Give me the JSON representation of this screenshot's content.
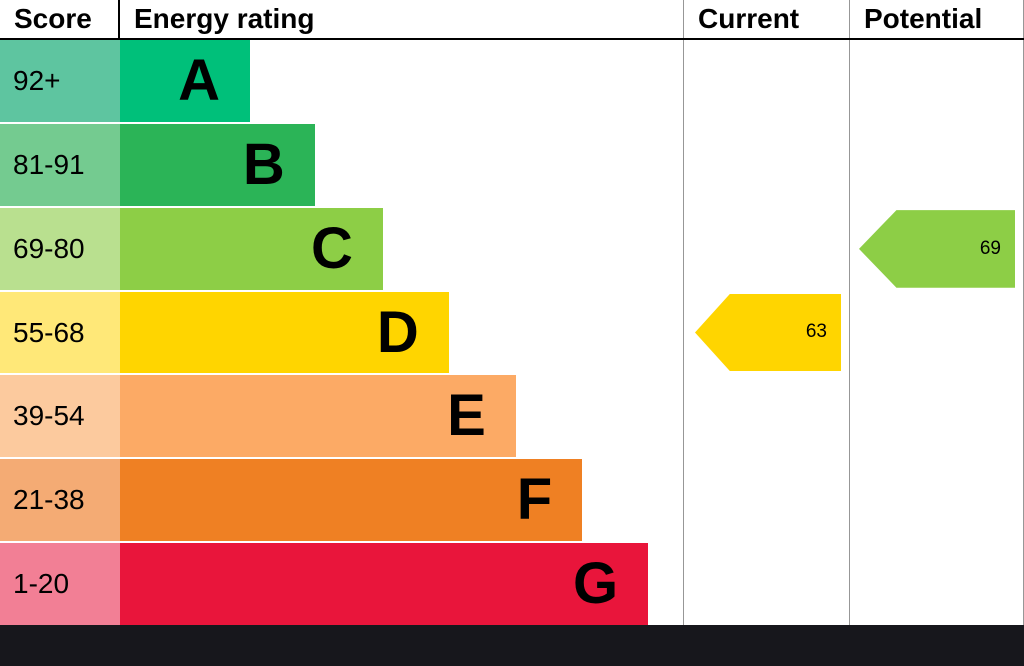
{
  "header": {
    "score": "Score",
    "energy_rating": "Energy rating",
    "current": "Current",
    "potential": "Potential"
  },
  "bands": [
    {
      "score": "92+",
      "letter": "A",
      "bar_color": "#00c07a",
      "score_color": "#5ec5a0",
      "width_pct": 23.1
    },
    {
      "score": "81-91",
      "letter": "B",
      "bar_color": "#2bb457",
      "score_color": "#74cb90",
      "width_pct": 34.6
    },
    {
      "score": "69-80",
      "letter": "C",
      "bar_color": "#8dce46",
      "score_color": "#b9e08f",
      "width_pct": 46.7
    },
    {
      "score": "55-68",
      "letter": "D",
      "bar_color": "#ffd500",
      "score_color": "#ffe878",
      "width_pct": 58.4
    },
    {
      "score": "39-54",
      "letter": "E",
      "bar_color": "#fcaa65",
      "score_color": "#fcca9e",
      "width_pct": 70.3
    },
    {
      "score": "21-38",
      "letter": "F",
      "bar_color": "#ef8023",
      "score_color": "#f4ab74",
      "width_pct": 82.1
    },
    {
      "score": "1-20",
      "letter": "G",
      "bar_color": "#e9153b",
      "score_color": "#f27f95",
      "width_pct": 93.8
    }
  ],
  "current": {
    "value": "63",
    "band_row": 3,
    "band": "D",
    "color": "#ffd500"
  },
  "potential": {
    "value": "69",
    "band_row": 2,
    "band": "C",
    "color": "#8dce46"
  },
  "chart_data": {
    "type": "bar",
    "title": "Energy rating",
    "categories": [
      "A",
      "B",
      "C",
      "D",
      "E",
      "F",
      "G"
    ],
    "score_ranges": [
      "92+",
      "81-91",
      "69-80",
      "55-68",
      "39-54",
      "21-38",
      "1-20"
    ],
    "bar_colors": [
      "#00c07a",
      "#2bb457",
      "#8dce46",
      "#ffd500",
      "#fcaa65",
      "#ef8023",
      "#e9153b"
    ],
    "current_score": 63,
    "current_band": "D",
    "potential_score": 69,
    "potential_band": "C",
    "legend_position": "none",
    "grid": false
  }
}
